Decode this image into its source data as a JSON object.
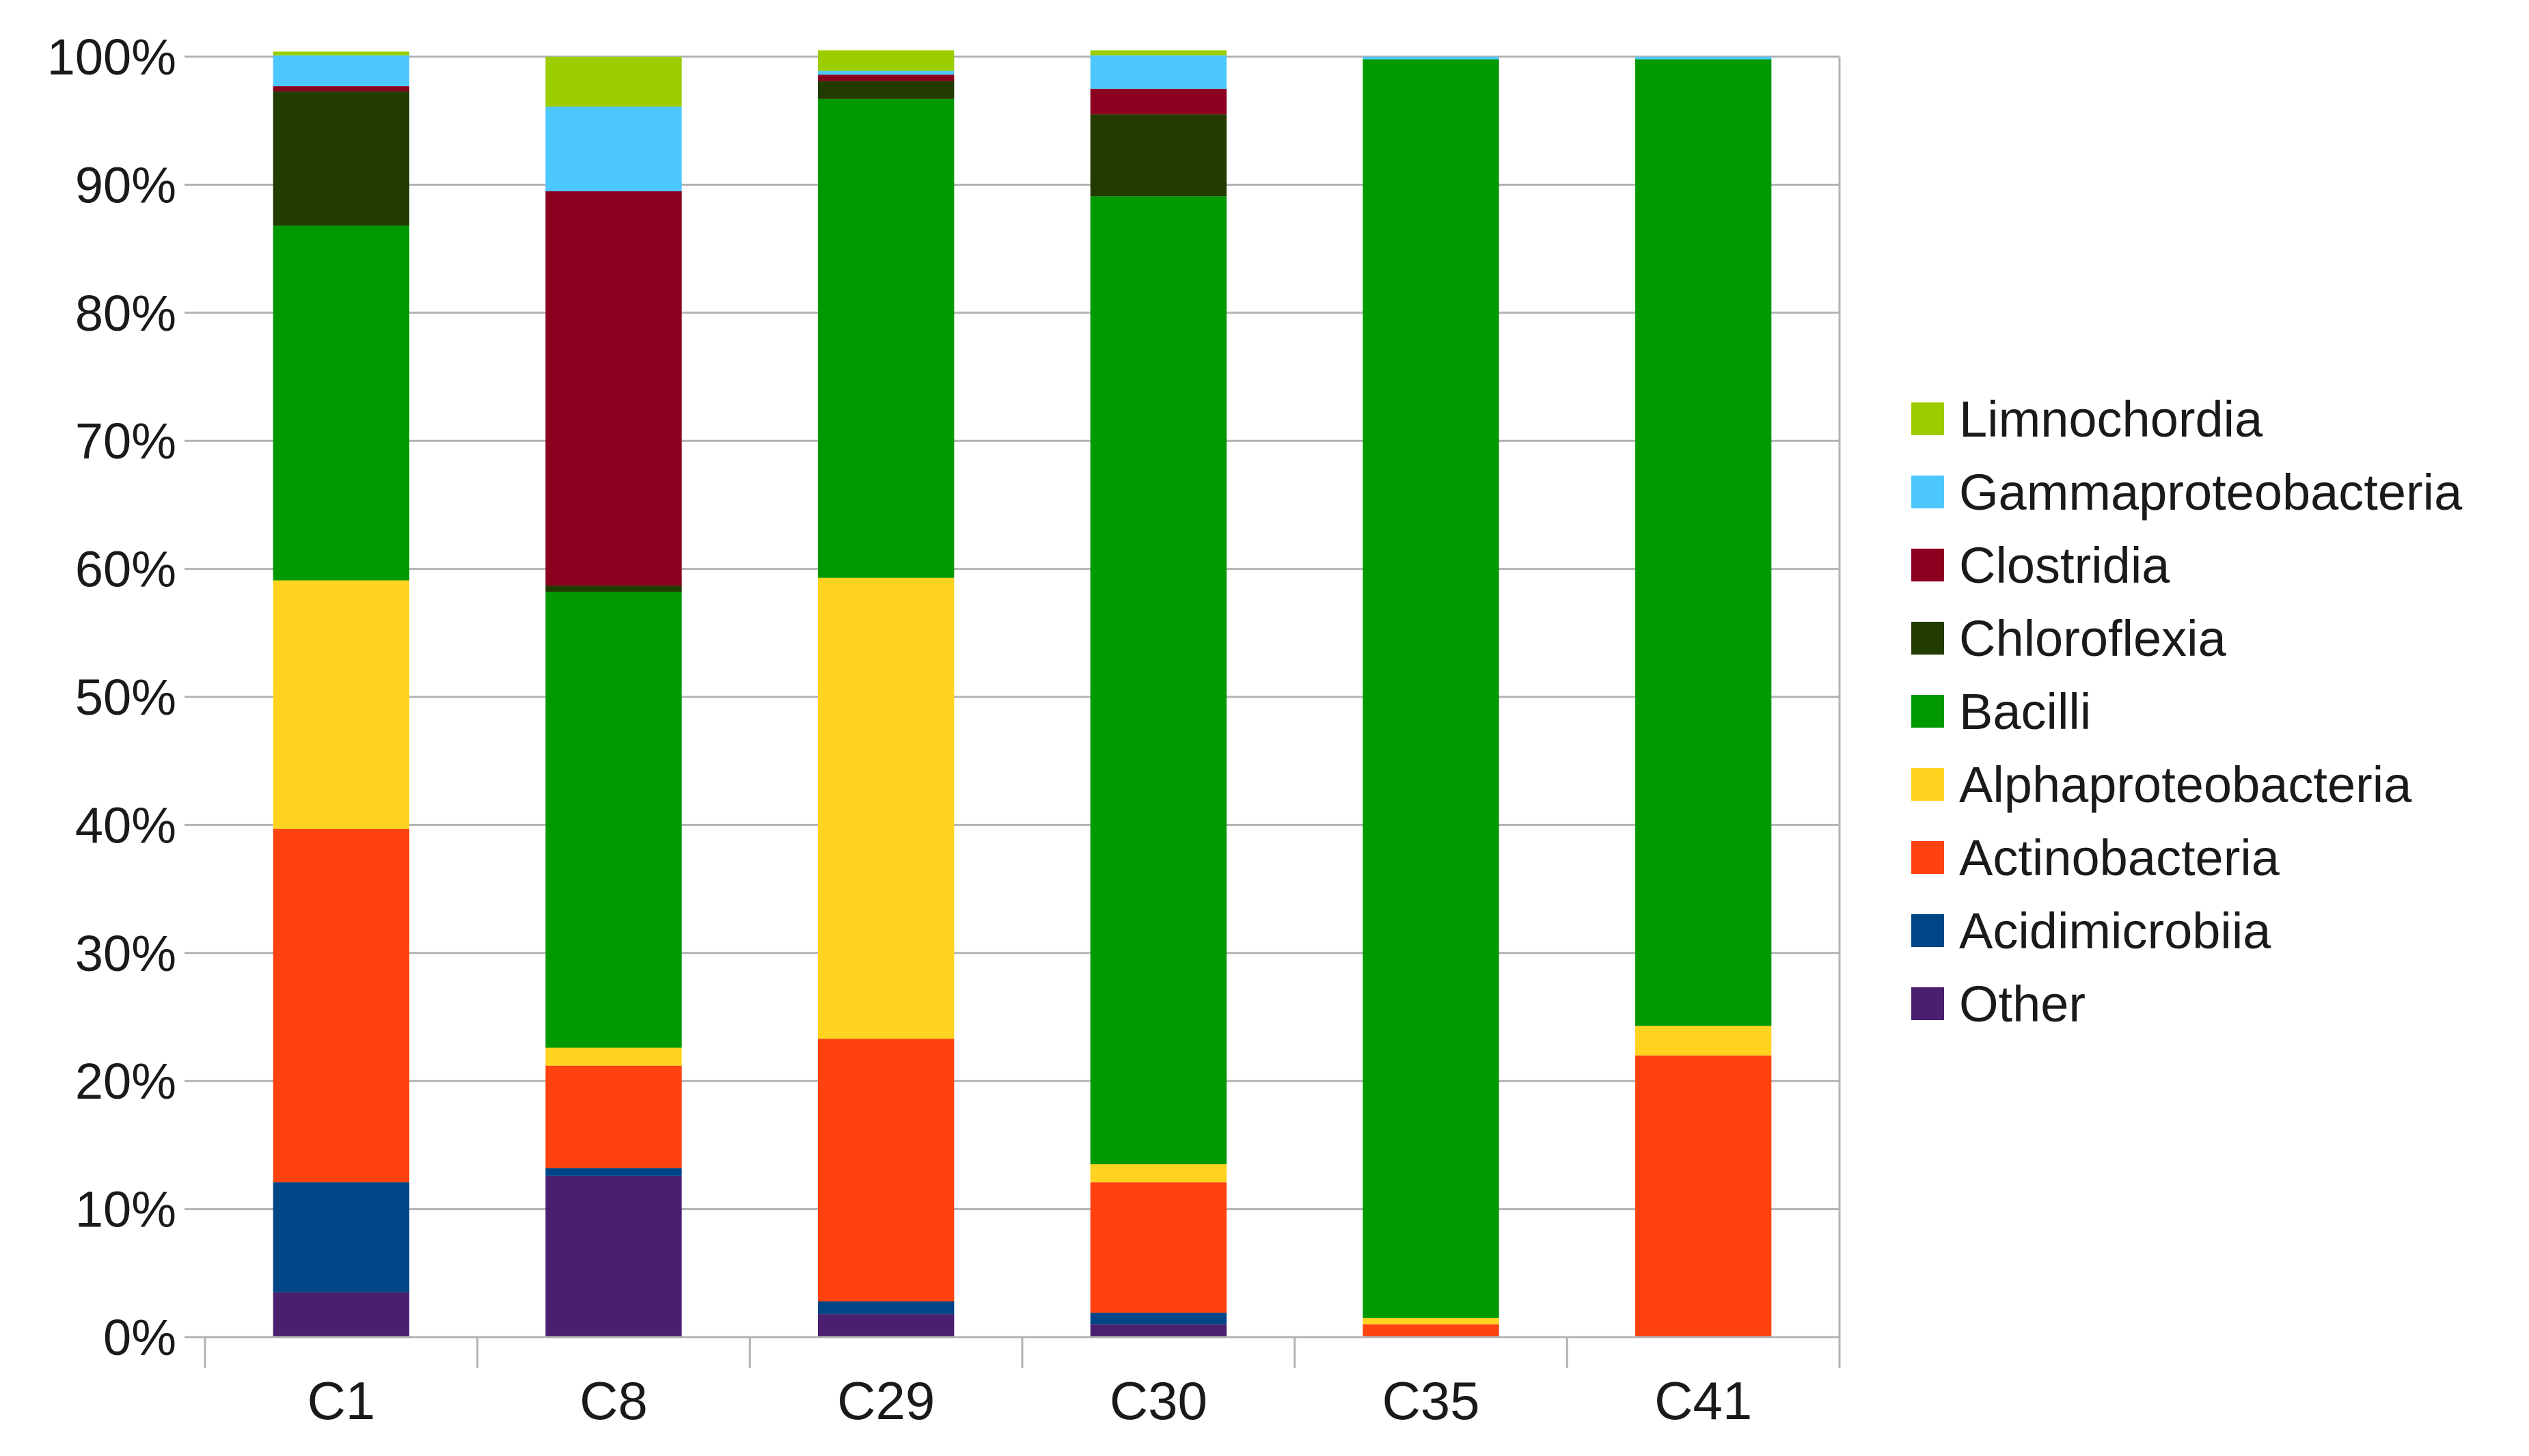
{
  "chart_data": {
    "type": "bar",
    "stacked": true,
    "percent": true,
    "categories": [
      "C1",
      "C8",
      "C29",
      "C30",
      "C35",
      "C41"
    ],
    "ylim": [
      0,
      100
    ],
    "yticks": [
      0,
      10,
      20,
      30,
      40,
      50,
      60,
      70,
      80,
      90,
      100
    ],
    "ytick_labels": [
      "0%",
      "10%",
      "20%",
      "30%",
      "40%",
      "50%",
      "60%",
      "70%",
      "80%",
      "90%",
      "100%"
    ],
    "grid": true,
    "legend_position": "right",
    "series": [
      {
        "name": "Other",
        "color": "#4b1f6f",
        "values": [
          3.5,
          12.6,
          1.8,
          1.0,
          0.0,
          0.0
        ]
      },
      {
        "name": "Acidimicrobiia",
        "color": "#004586",
        "values": [
          8.6,
          0.6,
          1.0,
          0.9,
          0.0,
          0.0
        ]
      },
      {
        "name": "Actinobacteria",
        "color": "#ff420e",
        "values": [
          27.6,
          8.0,
          20.5,
          10.2,
          1.0,
          22.0
        ]
      },
      {
        "name": "Alphaproteobacteria",
        "color": "#ffd320",
        "values": [
          19.4,
          1.4,
          36.0,
          1.4,
          0.5,
          2.3
        ]
      },
      {
        "name": "Bacilli",
        "color": "#009900",
        "values": [
          27.7,
          35.6,
          37.4,
          75.6,
          98.3,
          75.5
        ]
      },
      {
        "name": "Chloroflexia",
        "color": "#223b00",
        "values": [
          10.5,
          0.5,
          1.4,
          6.4,
          0.0,
          0.0
        ]
      },
      {
        "name": "Clostridia",
        "color": "#8b001f",
        "values": [
          0.4,
          30.8,
          0.5,
          2.0,
          0.0,
          0.0
        ]
      },
      {
        "name": "Gammaproteobacteria",
        "color": "#4dc8ff",
        "values": [
          2.4,
          6.6,
          0.3,
          2.6,
          0.2,
          0.2
        ]
      },
      {
        "name": "Limnochordia",
        "color": "#9bcd00",
        "values": [
          0.3,
          3.9,
          1.6,
          0.4,
          0.0,
          0.0
        ]
      }
    ],
    "legend_order": [
      "Limnochordia",
      "Gammaproteobacteria",
      "Clostridia",
      "Chloroflexia",
      "Bacilli",
      "Alphaproteobacteria",
      "Actinobacteria",
      "Acidimicrobiia",
      "Other"
    ]
  }
}
